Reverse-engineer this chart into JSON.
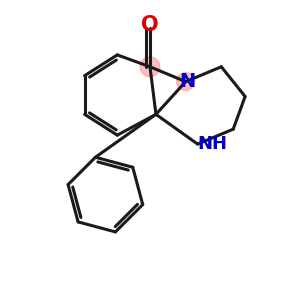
{
  "bg_color": "#ffffff",
  "bond_color": "#1a1a1a",
  "nitrogen_color": "#0000cc",
  "oxygen_color": "#dd0000",
  "highlight_color": "#ff8888",
  "highlight_alpha": 0.55,
  "xlim": [
    0,
    10
  ],
  "ylim": [
    0,
    10
  ]
}
